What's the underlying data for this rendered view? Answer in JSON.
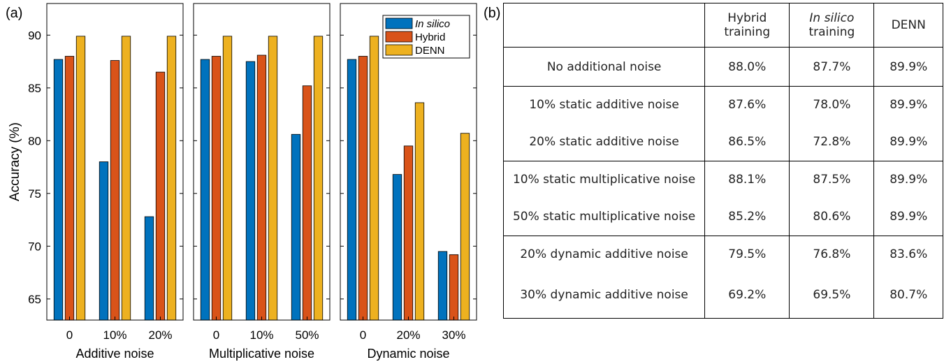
{
  "panel_labels": {
    "a": "(a)",
    "b": "(b)"
  },
  "colors": {
    "in_silico": "#0072BD",
    "hybrid": "#D95319",
    "denn": "#EDB120"
  },
  "chart_data": {
    "type": "bar",
    "ylabel": "Accuracy (%)",
    "ylim": [
      63,
      93
    ],
    "yticks": [
      65,
      70,
      75,
      80,
      85,
      90
    ],
    "legend": {
      "placement": "top-right",
      "entries": [
        "In silico",
        "Hybrid",
        "DENN"
      ]
    },
    "subplots": [
      {
        "xlabel": "Additive noise",
        "categories": [
          "0",
          "10%",
          "20%"
        ],
        "series": [
          {
            "name": "In silico",
            "values": [
              87.7,
              78.0,
              72.8
            ]
          },
          {
            "name": "Hybrid",
            "values": [
              88.0,
              87.6,
              86.5
            ]
          },
          {
            "name": "DENN",
            "values": [
              89.9,
              89.9,
              89.9
            ]
          }
        ]
      },
      {
        "xlabel": "Multiplicative noise",
        "categories": [
          "0",
          "10%",
          "50%"
        ],
        "series": [
          {
            "name": "In silico",
            "values": [
              87.7,
              87.5,
              80.6
            ]
          },
          {
            "name": "Hybrid",
            "values": [
              88.0,
              88.1,
              85.2
            ]
          },
          {
            "name": "DENN",
            "values": [
              89.9,
              89.9,
              89.9
            ]
          }
        ]
      },
      {
        "xlabel": "Dynamic noise",
        "categories": [
          "0",
          "20%",
          "30%"
        ],
        "series": [
          {
            "name": "In silico",
            "values": [
              87.7,
              76.8,
              69.5
            ]
          },
          {
            "name": "Hybrid",
            "values": [
              88.0,
              79.5,
              69.2
            ]
          },
          {
            "name": "DENN",
            "values": [
              89.9,
              83.6,
              80.7
            ]
          }
        ]
      }
    ]
  },
  "table": {
    "headers": {
      "hybrid": [
        "Hybrid",
        "training"
      ],
      "insilico": [
        "In silico",
        "training"
      ],
      "denn": "DENN"
    },
    "rows": [
      {
        "label": "No additional noise",
        "hybrid": "88.0%",
        "insilico": "87.7%",
        "denn": "89.9%"
      },
      {
        "label": "10% static additive noise",
        "hybrid": "87.6%",
        "insilico": "78.0%",
        "denn": "89.9%"
      },
      {
        "label": "20% static additive noise",
        "hybrid": "86.5%",
        "insilico": "72.8%",
        "denn": "89.9%"
      },
      {
        "label": "10% static multiplicative noise",
        "hybrid": "88.1%",
        "insilico": "87.5%",
        "denn": "89.9%"
      },
      {
        "label": "50% static multiplicative noise",
        "hybrid": "85.2%",
        "insilico": "80.6%",
        "denn": "89.9%"
      },
      {
        "label": "20% dynamic additive noise",
        "hybrid": "79.5%",
        "insilico": "76.8%",
        "denn": "83.6%"
      },
      {
        "label": "30% dynamic additive noise",
        "hybrid": "69.2%",
        "insilico": "69.5%",
        "denn": "80.7%"
      }
    ]
  }
}
